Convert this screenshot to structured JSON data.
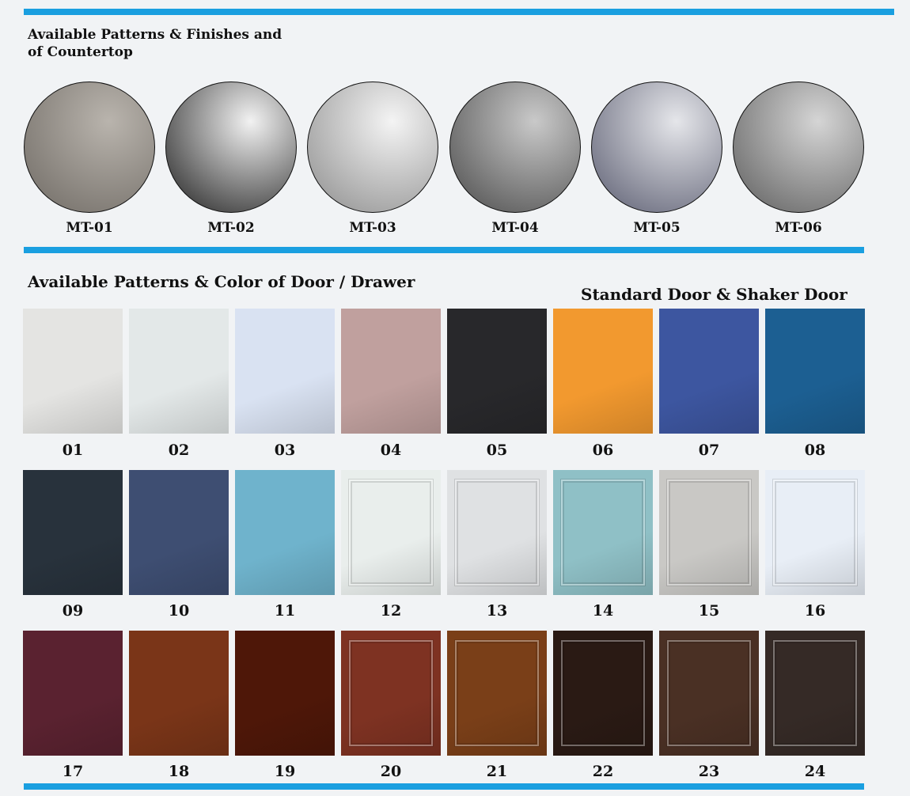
{
  "countertop": {
    "title_line1": "Available Patterns & Finishes and",
    "title_line2": "of Countertop",
    "items": [
      {
        "code": "MT-01",
        "colors": [
          "#b9b4ad",
          "#6f6a64"
        ]
      },
      {
        "code": "MT-02",
        "colors": [
          "#f2f2f2",
          "#1e1e1e"
        ]
      },
      {
        "code": "MT-03",
        "colors": [
          "#f4f4f4",
          "#8c8c8c"
        ]
      },
      {
        "code": "MT-04",
        "colors": [
          "#c9c9c9",
          "#4a4a4a"
        ]
      },
      {
        "code": "MT-05",
        "colors": [
          "#e5e6ea",
          "#5a5c70"
        ]
      },
      {
        "code": "MT-06",
        "colors": [
          "#d5d5d5",
          "#5d5d5d"
        ]
      }
    ]
  },
  "doors": {
    "title": "Available Patterns & Color of Door / Drawer",
    "subtitle": "Standard Door & Shaker Door",
    "items": [
      {
        "code": "01",
        "color": "#e4e4e2"
      },
      {
        "code": "02",
        "color": "#e3e8e8"
      },
      {
        "code": "03",
        "color": "#d9e2f2"
      },
      {
        "code": "04",
        "color": "#c0a09e"
      },
      {
        "code": "05",
        "color": "#28282b"
      },
      {
        "code": "06",
        "color": "#f2992f"
      },
      {
        "code": "07",
        "color": "#3d56a0"
      },
      {
        "code": "08",
        "color": "#1c5f92"
      },
      {
        "code": "09",
        "color": "#28323c"
      },
      {
        "code": "10",
        "color": "#3e4e72"
      },
      {
        "code": "11",
        "color": "#6fb3cc"
      },
      {
        "code": "12",
        "color": "#e9eeec",
        "shaker": true
      },
      {
        "code": "13",
        "color": "#dfe1e3",
        "shaker": true
      },
      {
        "code": "14",
        "color": "#8fc0c6",
        "shaker": true
      },
      {
        "code": "15",
        "color": "#c9c8c5",
        "shaker": true
      },
      {
        "code": "16",
        "color": "#e8eef6",
        "shaker": true
      },
      {
        "code": "17",
        "color": "#5a2230"
      },
      {
        "code": "18",
        "color": "#7a3518"
      },
      {
        "code": "19",
        "color": "#4e1708"
      },
      {
        "code": "20",
        "color": "#7e3222",
        "shaker": true
      },
      {
        "code": "21",
        "color": "#7a3f18",
        "shaker": true
      },
      {
        "code": "22",
        "color": "#2a1a14",
        "shaker": true
      },
      {
        "code": "23",
        "color": "#4a3024",
        "shaker": true
      },
      {
        "code": "24",
        "color": "#352a26",
        "shaker": true
      }
    ]
  },
  "accent_color": "#1a9fe0"
}
